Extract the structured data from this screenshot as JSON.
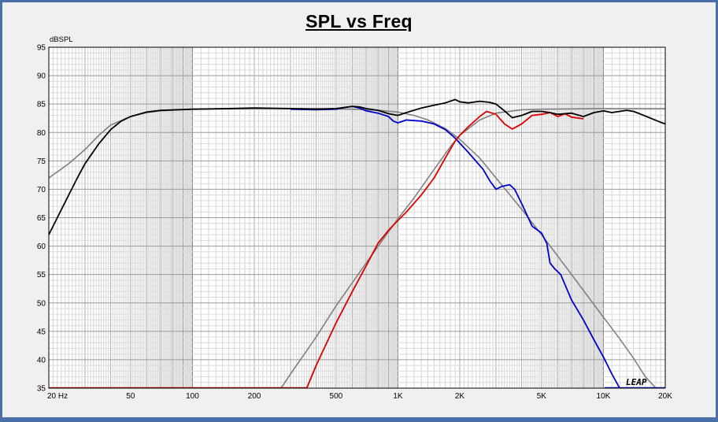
{
  "window": {
    "border_color": "#4a6ea8"
  },
  "chart_data": {
    "type": "line",
    "title": "SPL vs Freq",
    "ylabel": "dBSPL",
    "xlabel": "",
    "x_scale": "log",
    "xlim": [
      20,
      20000
    ],
    "ylim": [
      35,
      95
    ],
    "grid": true,
    "x_tick_labels": [
      {
        "value": 20,
        "label": "20  Hz"
      },
      {
        "value": 50,
        "label": "50"
      },
      {
        "value": 100,
        "label": "100"
      },
      {
        "value": 200,
        "label": "200"
      },
      {
        "value": 500,
        "label": "500"
      },
      {
        "value": 1000,
        "label": "1K"
      },
      {
        "value": 2000,
        "label": "2K"
      },
      {
        "value": 5000,
        "label": "5K"
      },
      {
        "value": 10000,
        "label": "10K"
      },
      {
        "value": 20000,
        "label": "20K"
      }
    ],
    "y_tick_labels": [
      "35",
      "40",
      "45",
      "50",
      "55",
      "60",
      "65",
      "70",
      "75",
      "80",
      "85",
      "90",
      "95"
    ],
    "watermark": "LEAP",
    "series": [
      {
        "color": "#808080",
        "points": [
          [
            20,
            72
          ],
          [
            25,
            74.5
          ],
          [
            30,
            77
          ],
          [
            35,
            79.5
          ],
          [
            40,
            81.3
          ],
          [
            50,
            82.8
          ],
          [
            60,
            83.5
          ],
          [
            70,
            83.8
          ],
          [
            100,
            84.1
          ],
          [
            200,
            84.2
          ],
          [
            400,
            84.2
          ],
          [
            600,
            84.1
          ],
          [
            800,
            83.9
          ],
          [
            1000,
            83.6
          ],
          [
            1200,
            83
          ],
          [
            1400,
            82.2
          ],
          [
            1700,
            80.7
          ],
          [
            2000,
            78.8
          ],
          [
            2500,
            75.5
          ],
          [
            3000,
            72
          ],
          [
            4000,
            66.5
          ],
          [
            5000,
            62
          ],
          [
            7000,
            55
          ],
          [
            10000,
            47.5
          ],
          [
            12000,
            43.7
          ],
          [
            14000,
            40.3
          ],
          [
            16000,
            37
          ],
          [
            18000,
            35
          ]
        ]
      },
      {
        "color": "#808080",
        "points": [
          [
            270,
            35
          ],
          [
            300,
            37.5
          ],
          [
            400,
            44
          ],
          [
            500,
            49.5
          ],
          [
            700,
            57
          ],
          [
            1000,
            64.8
          ],
          [
            1200,
            68.5
          ],
          [
            1500,
            73.5
          ],
          [
            1800,
            77.5
          ],
          [
            2000,
            79.5
          ],
          [
            2500,
            82.2
          ],
          [
            3000,
            83.4
          ],
          [
            4000,
            84
          ],
          [
            5000,
            84.1
          ],
          [
            10000,
            84.2
          ],
          [
            20000,
            84.2
          ]
        ]
      },
      {
        "color": "#0000cc",
        "points": [
          [
            300,
            84.1
          ],
          [
            400,
            84
          ],
          [
            500,
            84.1
          ],
          [
            550,
            84.4
          ],
          [
            600,
            84.6
          ],
          [
            650,
            84.3
          ],
          [
            700,
            83.8
          ],
          [
            800,
            83.4
          ],
          [
            900,
            82.8
          ],
          [
            950,
            82
          ],
          [
            1000,
            81.7
          ],
          [
            1100,
            82.2
          ],
          [
            1300,
            82
          ],
          [
            1500,
            81.5
          ],
          [
            1700,
            80.5
          ],
          [
            1900,
            79
          ],
          [
            2200,
            76.5
          ],
          [
            2600,
            73.5
          ],
          [
            2800,
            71.5
          ],
          [
            3000,
            70
          ],
          [
            3200,
            70.5
          ],
          [
            3500,
            70.8
          ],
          [
            3700,
            70
          ],
          [
            4000,
            67.5
          ],
          [
            4500,
            63.5
          ],
          [
            5000,
            62.3
          ],
          [
            5300,
            60.5
          ],
          [
            5500,
            57
          ],
          [
            5800,
            56
          ],
          [
            6200,
            55
          ],
          [
            7000,
            50.5
          ],
          [
            8000,
            47
          ],
          [
            9000,
            43.5
          ],
          [
            10000,
            40.5
          ],
          [
            11000,
            37.5
          ],
          [
            12000,
            35
          ]
        ]
      },
      {
        "color": "#dd0000",
        "points": [
          [
            360,
            35
          ],
          [
            400,
            39
          ],
          [
            500,
            46.5
          ],
          [
            600,
            52
          ],
          [
            700,
            56.5
          ],
          [
            800,
            60.5
          ],
          [
            900,
            62.8
          ],
          [
            1000,
            64.5
          ],
          [
            1100,
            66
          ],
          [
            1300,
            69
          ],
          [
            1500,
            72
          ],
          [
            1700,
            75.5
          ],
          [
            1900,
            78.5
          ],
          [
            2000,
            79.5
          ],
          [
            2200,
            81
          ],
          [
            2500,
            82.8
          ],
          [
            2700,
            83.7
          ],
          [
            3000,
            83.2
          ],
          [
            3300,
            81.5
          ],
          [
            3600,
            80.6
          ],
          [
            4000,
            81.5
          ],
          [
            4500,
            83
          ],
          [
            5000,
            83.2
          ],
          [
            5500,
            83.5
          ],
          [
            6000,
            82.8
          ],
          [
            6500,
            83.3
          ],
          [
            7000,
            82.7
          ],
          [
            8000,
            82.4
          ]
        ]
      },
      {
        "color": "#000000",
        "points": [
          [
            20,
            62
          ],
          [
            22,
            65
          ],
          [
            25,
            69
          ],
          [
            28,
            72.5
          ],
          [
            30,
            74.5
          ],
          [
            35,
            78
          ],
          [
            40,
            80.5
          ],
          [
            45,
            82
          ],
          [
            50,
            82.8
          ],
          [
            60,
            83.6
          ],
          [
            70,
            83.9
          ],
          [
            100,
            84.1
          ],
          [
            150,
            84.2
          ],
          [
            200,
            84.3
          ],
          [
            300,
            84.2
          ],
          [
            400,
            84.1
          ],
          [
            500,
            84.2
          ],
          [
            600,
            84.6
          ],
          [
            650,
            84.5
          ],
          [
            700,
            84.2
          ],
          [
            800,
            83.9
          ],
          [
            900,
            83.3
          ],
          [
            1000,
            83
          ],
          [
            1100,
            83.5
          ],
          [
            1300,
            84.3
          ],
          [
            1500,
            84.8
          ],
          [
            1700,
            85.2
          ],
          [
            1900,
            85.8
          ],
          [
            2000,
            85.4
          ],
          [
            2200,
            85.2
          ],
          [
            2500,
            85.5
          ],
          [
            2800,
            85.3
          ],
          [
            3000,
            85
          ],
          [
            3300,
            83.8
          ],
          [
            3600,
            82.6
          ],
          [
            4000,
            83
          ],
          [
            4500,
            83.7
          ],
          [
            5000,
            83.7
          ],
          [
            5500,
            83.5
          ],
          [
            6000,
            83.2
          ],
          [
            7000,
            83.4
          ],
          [
            8000,
            82.8
          ],
          [
            9000,
            83.5
          ],
          [
            10000,
            83.8
          ],
          [
            11000,
            83.5
          ],
          [
            12000,
            83.7
          ],
          [
            13000,
            83.9
          ],
          [
            14000,
            83.7
          ],
          [
            15000,
            83.3
          ],
          [
            17000,
            82.5
          ],
          [
            19000,
            81.8
          ],
          [
            20000,
            81.5
          ]
        ]
      }
    ]
  }
}
